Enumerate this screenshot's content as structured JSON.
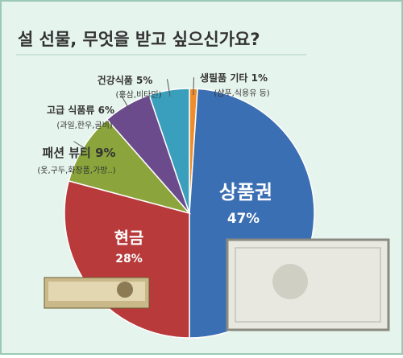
{
  "chart_data": {
    "type": "pie",
    "title": "설 선물, 무엇을 받고 싶으신가요?",
    "categories": [
      "생필품 기타",
      "상품권",
      "현금",
      "패션 뷰티",
      "고급 식품류",
      "건강식품"
    ],
    "values": [
      1,
      47,
      28,
      9,
      6,
      5
    ],
    "value_labels": [
      "1%",
      "47%",
      "28%",
      "9%",
      "6%",
      "5%"
    ],
    "sublabels": [
      "(샴푸,식용유 등)",
      null,
      null,
      "(옷,구두,화장품,가방..)",
      "(과일,한우,굴비)",
      "(홍삼,비타민)"
    ],
    "colors": [
      "#ef8d2c",
      "#3b6fb3",
      "#b83a3b",
      "#8ba53c",
      "#6b4b8c",
      "#3a9fbd"
    ]
  }
}
